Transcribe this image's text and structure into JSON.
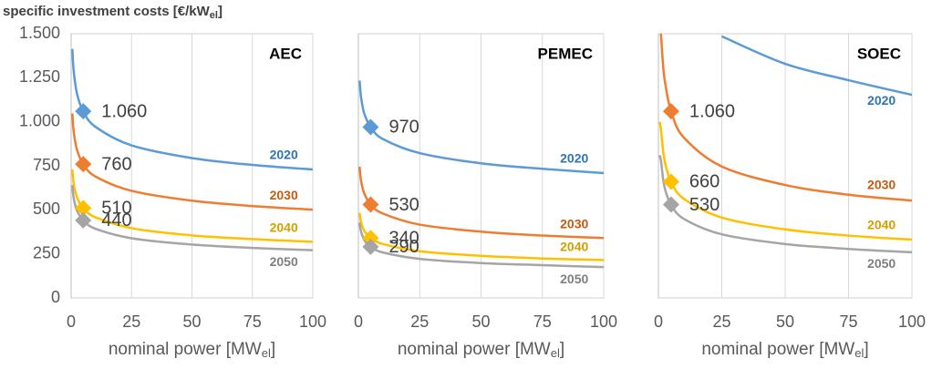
{
  "chart_data": [
    {
      "type": "line",
      "panel_title": "AEC",
      "ylabel": {
        "text": "specific investment costs [€/kW",
        "sub": "el",
        "end": "]"
      },
      "xlabel": {
        "text": "nominal power [MW",
        "sub": "el",
        "end": "]"
      },
      "xlim": [
        0,
        100
      ],
      "xticks": [
        0,
        25,
        50,
        75,
        100
      ],
      "ylim": [
        0,
        1500
      ],
      "yticks": [
        0,
        250,
        500,
        750,
        {
          "value": 1000,
          "label": "1.000"
        },
        {
          "value": 1250,
          "label": "1.250"
        },
        {
          "value": 1500,
          "label": "1.500"
        }
      ],
      "grid": true,
      "x": [
        0.5,
        1,
        2,
        3,
        5,
        10,
        25,
        50,
        75,
        100
      ],
      "series": [
        {
          "name": "2020",
          "color": "#5b9bd5",
          "values": [
            1414,
            1297,
            1189,
            1130,
            1060,
            972,
            866,
            794,
            755,
            729
          ],
          "marker_x": 5,
          "marker_label": "1.060"
        },
        {
          "name": "2030",
          "color": "#ed7d31",
          "values": [
            1047,
            951,
            864,
            818,
            760,
            690,
            608,
            552,
            522,
            501
          ],
          "marker_x": 5,
          "marker_label": "760"
        },
        {
          "name": "2040",
          "color": "#ffc000",
          "values": [
            730,
            655,
            588,
            553,
            510,
            458,
            396,
            355,
            334,
            319
          ],
          "marker_x": 5,
          "marker_label": "510"
        },
        {
          "name": "2050",
          "color": "#a5a5a5",
          "values": [
            641,
            572,
            511,
            480,
            440,
            393,
            339,
            303,
            284,
            271
          ],
          "marker_x": 5,
          "marker_label": "440"
        }
      ]
    },
    {
      "type": "line",
      "panel_title": "PEMEC",
      "xlabel": {
        "text": "nominal power [MW",
        "sub": "el",
        "end": "]"
      },
      "xlim": [
        0,
        100
      ],
      "xticks": [
        0,
        25,
        50,
        75,
        100
      ],
      "ylim": [
        0,
        1500
      ],
      "grid": true,
      "x": [
        0.5,
        1,
        2,
        3,
        5,
        10,
        25,
        50,
        75,
        100
      ],
      "series": [
        {
          "name": "2020",
          "color": "#5b9bd5",
          "values": [
            1234,
            1148,
            1067,
            1024,
            970,
            902,
            822,
            764,
            733,
            709
          ],
          "marker_x": 5,
          "marker_label": "970"
        },
        {
          "name": "2030",
          "color": "#ed7d31",
          "values": [
            745,
            673,
            609,
            575,
            530,
            479,
            416,
            376,
            354,
            340
          ],
          "marker_x": 5,
          "marker_label": "530"
        },
        {
          "name": "2040",
          "color": "#ffc000",
          "values": [
            483,
            435,
            392,
            369,
            340,
            306,
            265,
            239,
            224,
            215
          ],
          "marker_x": 5,
          "marker_label": "340"
        },
        {
          "name": "2050",
          "color": "#a5a5a5",
          "values": [
            428,
            381,
            340,
            316,
            290,
            258,
            222,
            198,
            186,
            175
          ],
          "marker_x": 5,
          "marker_label": "290"
        }
      ]
    },
    {
      "type": "line",
      "panel_title": "SOEC",
      "xlabel": {
        "text": "nominal power [MW",
        "sub": "el",
        "end": "]"
      },
      "xlim": [
        0,
        100
      ],
      "xticks": [
        0,
        25,
        50,
        75,
        100
      ],
      "ylim": [
        0,
        1500
      ],
      "grid": true,
      "x": [
        0.5,
        1,
        2,
        3,
        5,
        10,
        25,
        50,
        75,
        100
      ],
      "series": [
        {
          "name": "2020",
          "color": "#5b9bd5",
          "values": [
            null,
            null,
            null,
            null,
            null,
            null,
            1485,
            1329,
            1236,
            1153
          ]
        },
        {
          "name": "2030",
          "color": "#ed7d31",
          "values": [
            null,
            1500,
            1293,
            1190,
            1060,
            911,
            746,
            641,
            586,
            553
          ],
          "marker_x": 5,
          "marker_label": "1.060"
        },
        {
          "name": "2040",
          "color": "#ffc000",
          "values": [
            1000,
            958,
            817,
            744,
            660,
            563,
            456,
            389,
            354,
            331
          ],
          "marker_x": 5,
          "marker_label": "660"
        },
        {
          "name": "2050",
          "color": "#a5a5a5",
          "values": [
            810,
            779,
            661,
            598,
            530,
            449,
            361,
            306,
            278,
            259
          ],
          "marker_x": 5,
          "marker_label": "530"
        }
      ]
    }
  ]
}
